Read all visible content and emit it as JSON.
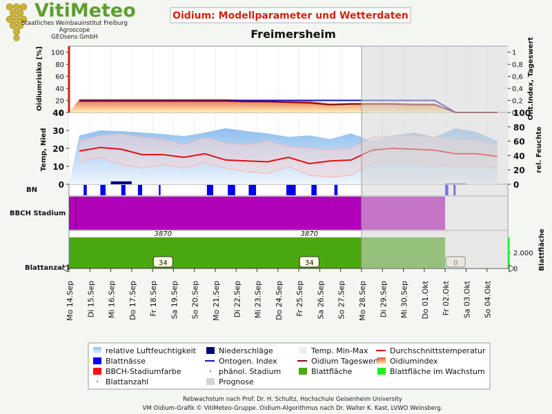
{
  "header": {
    "brand": "VitiMeteo",
    "org_lines": [
      "Staatliches Weinbauinstitut Freiburg",
      "Agroscope",
      "GEOsens GmbH"
    ],
    "title": "Oidium: Modellparameter und Wetterdaten",
    "location": "Freimersheim"
  },
  "colors": {
    "accent": "#d32010",
    "brand_green": "#5f9e2e",
    "forecast_shade": "#d6d6d6",
    "humidity": "#a8ccef",
    "temp_range": "#f4b8b8",
    "mean_temp": "#e01010",
    "ontogen": "#1010c0",
    "oidium_daily": "#7a0c0c",
    "bbch": "#b000b8",
    "leaf_area": "#4aa810",
    "leaf_area_growth": "#22ee22",
    "rain": "#000080",
    "wetness": "#0000ee"
  },
  "footer": {
    "line1": "Rebwachstum nach Prof. Dr. H. Schultz, Hochschule Geisenheim University",
    "line2": "VM Oidium-Grafik © VitiMeteo-Gruppe. Oidium-Algorithmus nach Dr. Walter K. Kast, LVWO Weinsberg."
  },
  "chart_data": {
    "type": "line",
    "x": [
      "Mo 14.Sep",
      "Di 15.Sep",
      "Mi 16.Sep",
      "Do 17.Sep",
      "Fr 18.Sep",
      "Sa 19.Sep",
      "So 20.Sep",
      "Mo 21.Sep",
      "Di 22.Sep",
      "Mi 23.Sep",
      "Do 24.Sep",
      "Fr 25.Sep",
      "Sa 26.Sep",
      "So 27.Sep",
      "Mo 28.Sep",
      "Di 29.Sep",
      "Mi 30.Sep",
      "Do 01.Okt",
      "Fr 02.Okt",
      "Sa 03.Okt",
      "So 04.Okt"
    ],
    "forecast_from": "Mo 28.Sep",
    "panels": [
      {
        "name": "oidium",
        "ylabel_left": "Oidiumrisiko [%]",
        "ylabel_right": "Ont.Index, Tageswert",
        "ylim_left": [
          0,
          110
        ],
        "left_ticks": [
          "0",
          "20",
          "40",
          "60",
          "80",
          "100"
        ],
        "ylim_right": [
          0,
          1.1
        ],
        "right_ticks": [
          "0",
          "0,2",
          "0,4",
          "0,6",
          "0,8",
          "1"
        ],
        "series": [
          {
            "name": "Oidiumindex",
            "axis": "left",
            "values": [
              22,
              22,
              22,
              22,
              22,
              22,
              22,
              22,
              21,
              21,
              20,
              19,
              15,
              16,
              16,
              16,
              15,
              15,
              0,
              0,
              0
            ]
          },
          {
            "name": "Ontogen. Index",
            "axis": "right",
            "values": [
              0.2,
              0.2,
              0.2,
              0.2,
              0.2,
              0.2,
              0.2,
              0.2,
              0.2,
              0.2,
              0.2,
              0.2,
              0.2,
              0.2,
              0.2,
              0.2,
              0.2,
              0.2,
              0,
              0,
              0
            ]
          },
          {
            "name": "Oidium Tageswert",
            "axis": "right",
            "values": [
              0.19,
              0.19,
              0.19,
              0.19,
              0.19,
              0.19,
              0.19,
              0.19,
              0.18,
              0.18,
              0.17,
              0.16,
              0.13,
              0.14,
              0.14,
              0.14,
              0.13,
              0.13,
              0,
              0,
              0
            ]
          }
        ]
      },
      {
        "name": "weather",
        "ylabel_left": "Temp, Nied",
        "ylabel_right": "rel. Feuchte",
        "ylim_left": [
          0,
          40
        ],
        "left_ticks": [
          "0",
          "10",
          "20",
          "30",
          "40"
        ],
        "ylim_right": [
          0,
          100
        ],
        "right_ticks": [
          "0",
          "20",
          "40",
          "60",
          "80",
          "100"
        ],
        "series": [
          {
            "name": "relative Luftfeuchtigkeit",
            "axis": "right",
            "values": [
              68,
              75,
              74,
              72,
              70,
              67,
              72,
              78,
              74,
              71,
              66,
              68,
              63,
              71,
              60,
              68,
              72,
              66,
              78,
              73,
              60
            ]
          },
          {
            "name": "Durchschnittstemperatur",
            "axis": "left",
            "values": [
              18.5,
              20.5,
              19.5,
              16.5,
              16.5,
              15,
              17,
              13.5,
              13,
              12.5,
              15,
              11.5,
              13,
              13.5,
              19,
              20,
              19.5,
              19,
              17,
              17,
              15.5
            ]
          },
          {
            "name": "Temp. Max",
            "axis": "left",
            "values": [
              24,
              27,
              28,
              26,
              25,
              22,
              26,
              23,
              22,
              24,
              21,
              20,
              19,
              20,
              26,
              27,
              27,
              26,
              25,
              24,
              22
            ]
          },
          {
            "name": "Temp. Min",
            "axis": "left",
            "values": [
              13,
              15,
              11,
              9,
              11,
              9,
              12,
              9,
              7,
              6,
              10,
              5,
              4,
              5,
              12,
              12,
              12,
              11,
              10,
              10,
              9
            ]
          },
          {
            "name": "Niederschläge",
            "axis": "left",
            "values": [
              0,
              0,
              1.6,
              0,
              0,
              0,
              0,
              0,
              0,
              0,
              0,
              0,
              0,
              0,
              0,
              0,
              0,
              0,
              0.3,
              0,
              0
            ]
          }
        ]
      },
      {
        "name": "BN",
        "label": "BN",
        "wet_intervals": [
          [
            0.7,
            0.85
          ],
          [
            1.5,
            1.75
          ],
          [
            2.5,
            2.7
          ],
          [
            3.3,
            3.5
          ],
          [
            4.3,
            4.38
          ],
          [
            6.6,
            6.9
          ],
          [
            7.6,
            7.95
          ],
          [
            8.6,
            8.95
          ],
          [
            10.4,
            10.85
          ],
          [
            11.6,
            11.85
          ],
          [
            12.7,
            12.85
          ],
          [
            18,
            18.15
          ],
          [
            18.4,
            18.5
          ]
        ]
      },
      {
        "name": "BBCH",
        "label": "BBCH Stadium",
        "end": "Do 01.Okt"
      },
      {
        "name": "leaf",
        "label": "Blattanzahl",
        "ylabel_right": "Blattfläche",
        "right_ticks": [
          "0",
          "2.000"
        ],
        "leaf_area_label": "3870",
        "leaf_area_label_days": [
          "Fr 18.Sep",
          "Fr 25.Sep"
        ],
        "leaf_count_badges": [
          {
            "day": "Fr 18.Sep",
            "value": "34"
          },
          {
            "day": "Fr 25.Sep",
            "value": "34"
          },
          {
            "day": "Fr 02.Okt",
            "value": "0"
          }
        ]
      }
    ],
    "legend": [
      {
        "label": "relative Luftfeuchtigkeit",
        "swatch": "grad-blue"
      },
      {
        "label": "Niederschläge",
        "swatch": "navy"
      },
      {
        "label": "Temp. Min-Max",
        "swatch": "light"
      },
      {
        "label": "Durchschnittstemperatur",
        "swatch": "redline"
      },
      {
        "label": "Blattnässe",
        "swatch": "blue"
      },
      {
        "label": "Ontogen. Index",
        "swatch": "blueline"
      },
      {
        "label": "Oidium Tageswert",
        "swatch": "darkredline"
      },
      {
        "label": "Oidiumindex",
        "swatch": "grad-orange"
      },
      {
        "label": "BBCH-Stadiumfarbe",
        "swatch": "red"
      },
      {
        "label": "phänol. Stadium",
        "swatch": "dot"
      },
      {
        "label": "Blattfläche",
        "swatch": "green"
      },
      {
        "label": "Blattfläche im Wachstum",
        "swatch": "lime"
      },
      {
        "label": "Blattanzahl",
        "swatch": "dot"
      },
      {
        "label": "Prognose",
        "swatch": "grey"
      }
    ]
  }
}
